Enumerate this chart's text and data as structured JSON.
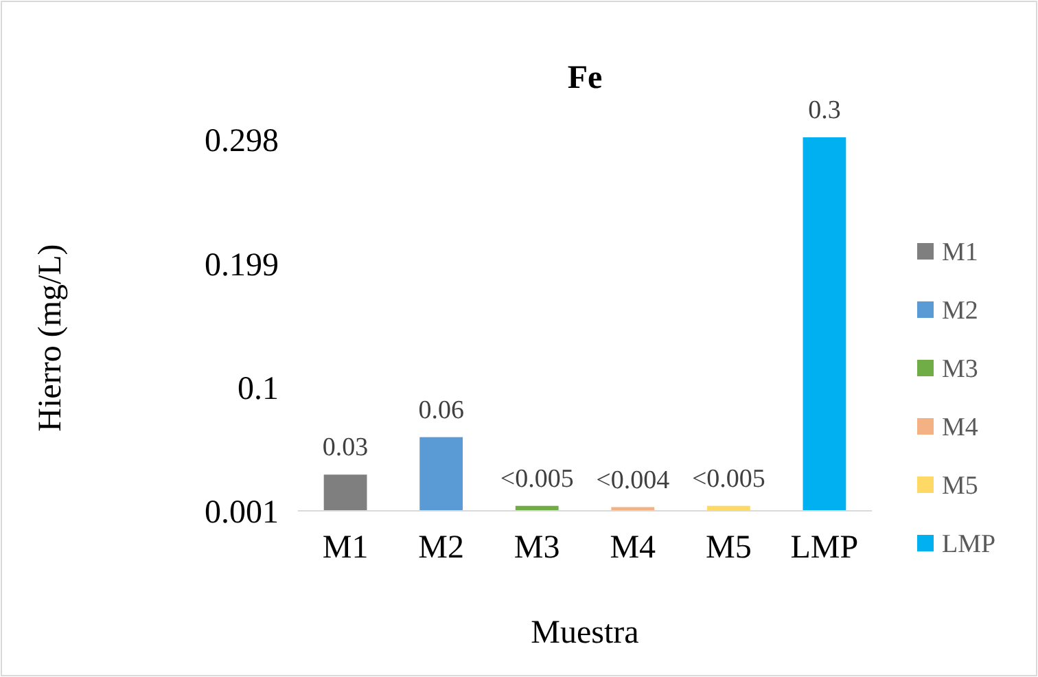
{
  "chart_data": {
    "type": "bar",
    "title": "Fe",
    "xlabel": "Muestra",
    "ylabel": "Hierro (mg/L)",
    "categories": [
      "M1",
      "M2",
      "M3",
      "M4",
      "M5",
      "LMP"
    ],
    "series": [
      {
        "name": "M1",
        "color": "#7f7f7f",
        "values": [
          0.03,
          null,
          null,
          null,
          null,
          null
        ],
        "value_labels": [
          "0.03",
          null,
          null,
          null,
          null,
          null
        ]
      },
      {
        "name": "M2",
        "color": "#5b9bd5",
        "values": [
          null,
          0.06,
          null,
          null,
          null,
          null
        ],
        "value_labels": [
          null,
          "0.06",
          null,
          null,
          null,
          null
        ]
      },
      {
        "name": "M3",
        "color": "#70ad47",
        "values": [
          null,
          null,
          0.005,
          null,
          null,
          null
        ],
        "value_labels": [
          null,
          null,
          "<0.005",
          null,
          null,
          null
        ]
      },
      {
        "name": "M4",
        "color": "#f4b183",
        "values": [
          null,
          null,
          null,
          0.004,
          null,
          null
        ],
        "value_labels": [
          null,
          null,
          null,
          "<0.004",
          null,
          null
        ]
      },
      {
        "name": "M5",
        "color": "#ffd966",
        "values": [
          null,
          null,
          null,
          null,
          0.005,
          null
        ],
        "value_labels": [
          null,
          null,
          null,
          null,
          "<0.005",
          null
        ]
      },
      {
        "name": "LMP",
        "color": "#00b0f0",
        "values": [
          null,
          null,
          null,
          null,
          null,
          0.3
        ],
        "value_labels": [
          null,
          null,
          null,
          null,
          null,
          "0.3"
        ]
      }
    ],
    "ylim": [
      0.001,
      0.3
    ],
    "yticks": [
      0.001,
      0.1,
      0.199,
      0.298
    ],
    "legend": "right",
    "grid": false
  }
}
